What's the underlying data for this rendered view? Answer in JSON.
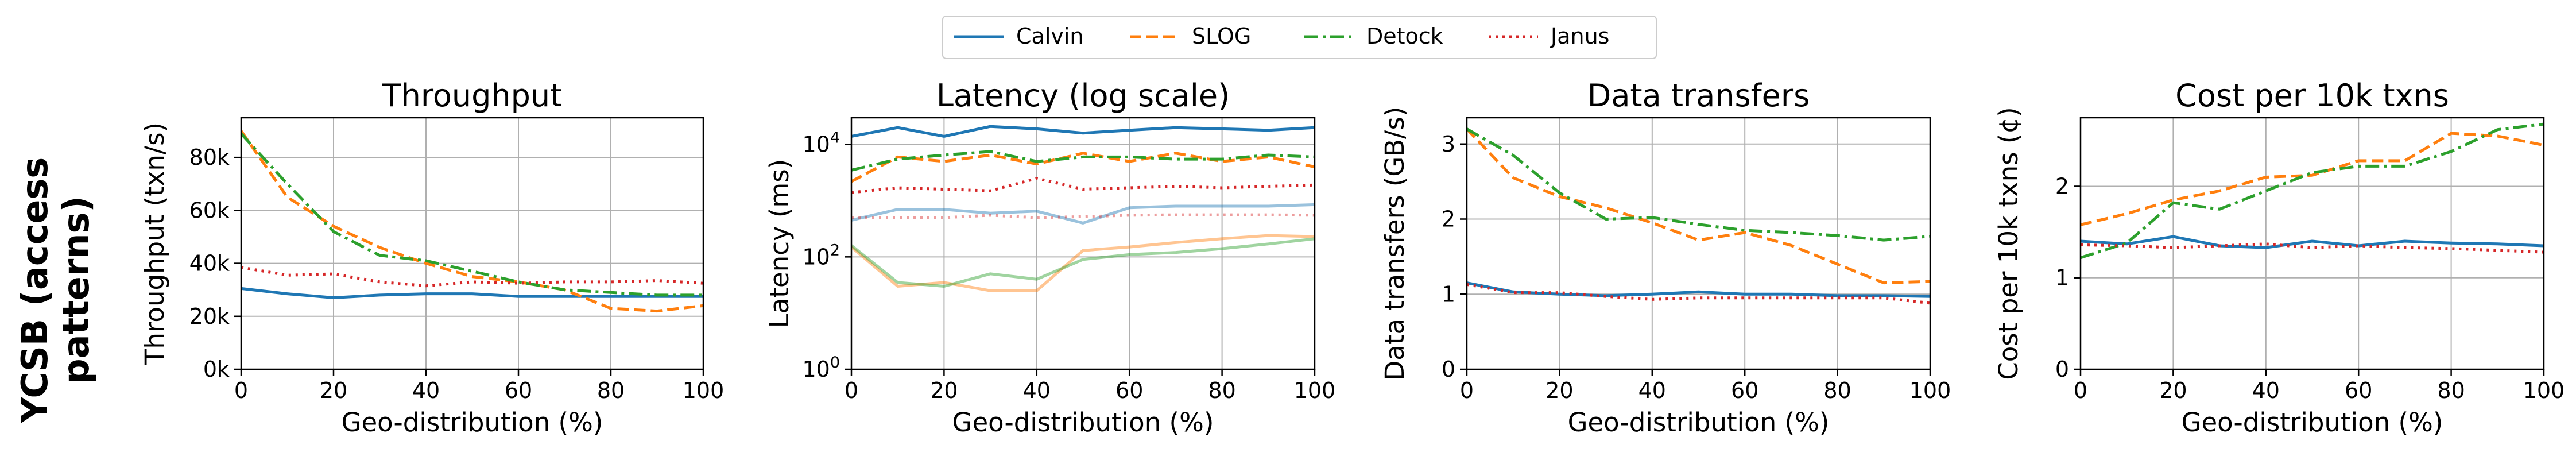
{
  "figure": {
    "row_label": "YCSB (access\npatterns)"
  },
  "legend": [
    {
      "name": "Calvin",
      "color": "#1f77b4",
      "dash": "solid"
    },
    {
      "name": "SLOG",
      "color": "#ff7f0e",
      "dash": "dashed"
    },
    {
      "name": "Detock",
      "color": "#2ca02c",
      "dash": "dashdot"
    },
    {
      "name": "Janus",
      "color": "#d62728",
      "dash": "dotted"
    }
  ],
  "chart_data": [
    {
      "type": "line",
      "title": "Throughput",
      "xlabel": "Geo-distribution (%)",
      "ylabel": "Throughput (txn/s)",
      "xlim": [
        0,
        100
      ],
      "ylim": [
        0,
        95000
      ],
      "xticks": [
        0,
        20,
        40,
        60,
        80,
        100
      ],
      "yticks": [
        0,
        20000,
        40000,
        60000,
        80000
      ],
      "yticklabels": [
        "0k",
        "20k",
        "40k",
        "60k",
        "80k"
      ],
      "grid": true,
      "x": [
        0,
        10,
        20,
        30,
        40,
        50,
        60,
        70,
        80,
        90,
        100
      ],
      "series": [
        {
          "name": "Calvin",
          "color": "#1f77b4",
          "dash": "solid",
          "values": [
            30500,
            28500,
            27000,
            28000,
            28500,
            28500,
            27500,
            27500,
            27500,
            27500,
            27500
          ]
        },
        {
          "name": "SLOG",
          "color": "#ff7f0e",
          "dash": "dashed",
          "values": [
            90000,
            65000,
            54000,
            46000,
            40000,
            35000,
            33000,
            30000,
            23000,
            22000,
            24000
          ]
        },
        {
          "name": "Detock",
          "color": "#2ca02c",
          "dash": "dashdot",
          "values": [
            89000,
            70000,
            52000,
            43000,
            41000,
            37000,
            33000,
            30000,
            29000,
            28000,
            28000
          ]
        },
        {
          "name": "Janus",
          "color": "#d62728",
          "dash": "dotted",
          "values": [
            38500,
            35500,
            36000,
            33000,
            31500,
            33000,
            32500,
            33000,
            33000,
            33500,
            32500
          ]
        }
      ]
    },
    {
      "type": "line",
      "title": "Latency (log scale)",
      "xlabel": "Geo-distribution (%)",
      "ylabel": "Latency (ms)",
      "xlim": [
        0,
        100
      ],
      "ylim": [
        1,
        30000
      ],
      "yscale": "log",
      "xticks": [
        0,
        20,
        40,
        60,
        80,
        100
      ],
      "yticks": [
        1,
        100,
        10000
      ],
      "yticklabels": [
        "10^0",
        "10^2",
        "10^4"
      ],
      "grid": true,
      "x": [
        0,
        10,
        20,
        30,
        40,
        50,
        60,
        70,
        80,
        90,
        100
      ],
      "series": [
        {
          "name": "Calvin",
          "color": "#1f77b4",
          "dash": "solid",
          "values": [
            14000,
            20000,
            14000,
            21000,
            19000,
            16000,
            18000,
            20000,
            19000,
            18000,
            20000
          ]
        },
        {
          "name": "SLOG",
          "color": "#ff7f0e",
          "dash": "dashed",
          "values": [
            2200,
            6000,
            5000,
            6500,
            4500,
            7000,
            5000,
            7000,
            5000,
            6000,
            4000
          ]
        },
        {
          "name": "Detock",
          "color": "#2ca02c",
          "dash": "dashdot",
          "values": [
            3500,
            5500,
            6500,
            7500,
            5000,
            6000,
            6000,
            5500,
            5500,
            6500,
            6000
          ]
        },
        {
          "name": "Janus",
          "color": "#d62728",
          "dash": "dotted",
          "values": [
            1400,
            1700,
            1600,
            1500,
            2500,
            1600,
            1700,
            1800,
            1700,
            1800,
            1900
          ]
        },
        {
          "name": "Calvin",
          "color": "#1f77b4",
          "dash": "solid",
          "faded": true,
          "values": [
            450,
            700,
            700,
            600,
            650,
            400,
            750,
            800,
            800,
            800,
            850
          ]
        },
        {
          "name": "SLOG",
          "color": "#ff7f0e",
          "dash": "solid",
          "faded": true,
          "values": [
            150,
            30,
            35,
            25,
            25,
            130,
            150,
            180,
            210,
            240,
            230
          ]
        },
        {
          "name": "Detock",
          "color": "#2ca02c",
          "dash": "solid",
          "faded": true,
          "values": [
            160,
            35,
            30,
            50,
            40,
            90,
            110,
            120,
            140,
            170,
            210
          ]
        },
        {
          "name": "Janus",
          "color": "#d62728",
          "dash": "dotted",
          "faded": true,
          "values": [
            500,
            500,
            500,
            550,
            500,
            520,
            550,
            560,
            560,
            560,
            550
          ]
        }
      ]
    },
    {
      "type": "line",
      "title": "Data transfers",
      "xlabel": "Geo-distribution (%)",
      "ylabel": "Data transfers (GB/s)",
      "xlim": [
        0,
        100
      ],
      "ylim": [
        0,
        3.35
      ],
      "xticks": [
        0,
        20,
        40,
        60,
        80,
        100
      ],
      "yticks": [
        0,
        1,
        2,
        3
      ],
      "yticklabels": [
        "0",
        "1",
        "2",
        "3"
      ],
      "grid": true,
      "x": [
        0,
        10,
        20,
        30,
        40,
        50,
        60,
        70,
        80,
        90,
        100
      ],
      "series": [
        {
          "name": "Calvin",
          "color": "#1f77b4",
          "dash": "solid",
          "values": [
            1.15,
            1.03,
            1.0,
            0.98,
            1.0,
            1.03,
            1.0,
            1.0,
            0.98,
            0.98,
            0.97
          ]
        },
        {
          "name": "SLOG",
          "color": "#ff7f0e",
          "dash": "dashed",
          "values": [
            3.2,
            2.55,
            2.3,
            2.15,
            1.95,
            1.72,
            1.82,
            1.65,
            1.4,
            1.15,
            1.17
          ]
        },
        {
          "name": "Detock",
          "color": "#2ca02c",
          "dash": "dashdot",
          "values": [
            3.2,
            2.85,
            2.35,
            2.0,
            2.02,
            1.93,
            1.85,
            1.82,
            1.78,
            1.72,
            1.77
          ]
        },
        {
          "name": "Janus",
          "color": "#d62728",
          "dash": "dotted",
          "values": [
            1.13,
            1.02,
            1.02,
            0.97,
            0.93,
            0.95,
            0.95,
            0.95,
            0.95,
            0.95,
            0.88
          ]
        }
      ]
    },
    {
      "type": "line",
      "title": "Cost per 10k txns",
      "xlabel": "Geo-distribution (%)",
      "ylabel": "Cost per 10k txns (¢)",
      "xlim": [
        0,
        100
      ],
      "ylim": [
        0,
        2.75
      ],
      "xticks": [
        0,
        20,
        40,
        60,
        80,
        100
      ],
      "yticks": [
        0,
        1,
        2
      ],
      "yticklabels": [
        "0",
        "1",
        "2"
      ],
      "grid": true,
      "x": [
        0,
        10,
        20,
        30,
        40,
        50,
        60,
        70,
        80,
        90,
        100
      ],
      "series": [
        {
          "name": "Calvin",
          "color": "#1f77b4",
          "dash": "solid",
          "values": [
            1.4,
            1.37,
            1.45,
            1.35,
            1.33,
            1.4,
            1.35,
            1.4,
            1.38,
            1.37,
            1.35
          ]
        },
        {
          "name": "SLOG",
          "color": "#ff7f0e",
          "dash": "dashed",
          "values": [
            1.58,
            1.7,
            1.85,
            1.95,
            2.1,
            2.12,
            2.28,
            2.28,
            2.58,
            2.55,
            2.45
          ]
        },
        {
          "name": "Detock",
          "color": "#2ca02c",
          "dash": "dashdot",
          "values": [
            1.22,
            1.38,
            1.82,
            1.75,
            1.95,
            2.15,
            2.22,
            2.22,
            2.38,
            2.62,
            2.68
          ]
        },
        {
          "name": "Janus",
          "color": "#d62728",
          "dash": "dotted",
          "values": [
            1.36,
            1.35,
            1.33,
            1.35,
            1.37,
            1.33,
            1.35,
            1.33,
            1.32,
            1.3,
            1.28
          ]
        }
      ]
    }
  ]
}
